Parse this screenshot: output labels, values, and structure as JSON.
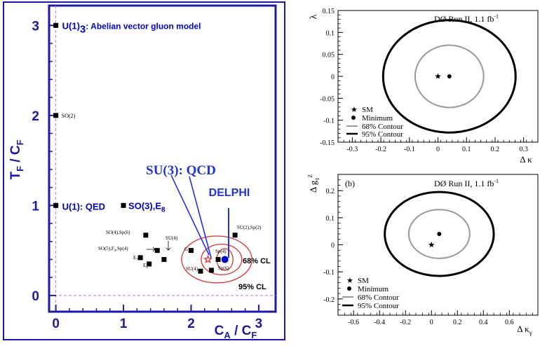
{
  "chart_data": [
    {
      "type": "scatter",
      "xlabel": "C_A / C_F",
      "ylabel": "T_F / C_F",
      "xlim": [
        -0.1,
        3.25
      ],
      "ylim": [
        -0.18,
        3.22
      ],
      "x_ticks": [
        "0",
        "1",
        "2",
        "3"
      ],
      "y_ticks": [
        "0",
        "1",
        "2",
        "3"
      ],
      "colors": {
        "frame": "#1a1aa6",
        "accent": "#0000cc",
        "guide": "#d860d8",
        "contour": "#e03030",
        "point": "#000000"
      },
      "points": [
        {
          "x": 0,
          "y": 3,
          "label": "U(1)",
          "sub": "3",
          "label2": ": Abelian vector gluon model"
        },
        {
          "x": 0,
          "y": 2,
          "label": "SO(2)"
        },
        {
          "x": 0,
          "y": 1,
          "label": "U(1): QED"
        },
        {
          "x": 1,
          "y": 1,
          "label": "SO(3),E",
          "sub": "8"
        },
        {
          "x": 1.33,
          "y": 0.67
        },
        {
          "x": 1.25,
          "y": 0.42
        },
        {
          "x": 1.38,
          "y": 0.35
        },
        {
          "x": 1.5,
          "y": 0.5
        },
        {
          "x": 1.6,
          "y": 0.4
        },
        {
          "x": 2.0,
          "y": 0.5
        },
        {
          "x": 2.4,
          "y": 0.4
        },
        {
          "x": 2.3,
          "y": 0.28
        },
        {
          "x": 2.14,
          "y": 0.27
        },
        {
          "x": 2.65,
          "y": 0.67
        }
      ],
      "small_labels": {
        "so4": "SO(4),Sp(6)",
        "su4": "SU(4)",
        "so5": "SO(5),F",
        "so5_sub": "4",
        "so5_tail": ",Sp(4)",
        "e7": "E",
        "e7_sub": "7",
        "e6": "E",
        "e6_sub": "6",
        "g2": "G",
        "g2_sub": "2",
        "sp4": "Sp(4)",
        "sp6": "Sp(6)",
        "su4b": "SU(4)",
        "su2sp2": "SU(2),Sp(2)"
      },
      "su3": {
        "x": 2.25,
        "y": 0.4,
        "label": "SU(3): QCD"
      },
      "delphi": {
        "x": 2.5,
        "y": 0.4,
        "label": "DELPHI"
      },
      "cl_labels": [
        "68% CL",
        "95% CL"
      ]
    },
    {
      "type": "scatter",
      "title": "DØ Run II, 1.1 fb",
      "title_sup": "-1",
      "xlabel": "Δ κ",
      "ylabel": "λ",
      "xlim": [
        -0.35,
        0.35
      ],
      "ylim": [
        -0.15,
        0.15
      ],
      "x_ticks": [
        "-0.3",
        "-0.2",
        "-0.1",
        "0",
        "0.1",
        "0.2",
        "0.3"
      ],
      "y_ticks": [
        "-0.15",
        "-0.1",
        "-0.05",
        "0",
        "0.05",
        "0.1",
        "0.15"
      ],
      "sm": {
        "x": 0,
        "y": 0
      },
      "minimum": {
        "x": 0.04,
        "y": 0
      },
      "contour68": {
        "cx": 0.04,
        "cy": 0,
        "rx": 0.12,
        "ry": 0.071
      },
      "contour95": {
        "cx": 0.04,
        "cy": 0,
        "rx": 0.232,
        "ry": 0.128
      },
      "legend": [
        "SM",
        "Minimum",
        "68% Contour",
        "95% Contour"
      ]
    },
    {
      "type": "scatter",
      "panel_label": "(b)",
      "title": "DØ Run II, 1.1 fb",
      "title_sup": "-1",
      "xlabel": "Δ κ",
      "xlabel_sub": "γ",
      "ylabel": "Δ g",
      "ylabel_sub": "1",
      "ylabel_sup": "Z",
      "xlim": [
        -0.72,
        0.82
      ],
      "ylim": [
        -0.26,
        0.26
      ],
      "x_ticks": [
        "-0.6",
        "-0.4",
        "-0.2",
        "0",
        "0.2",
        "0.4",
        "0.6"
      ],
      "y_ticks": [
        "-0.2",
        "-0.1",
        "0",
        "0.1",
        "0.2"
      ],
      "sm": {
        "x": 0,
        "y": 0
      },
      "minimum": {
        "x": 0.06,
        "y": 0.04
      },
      "contour68": {
        "cx": 0.06,
        "cy": 0.04,
        "rx": 0.235,
        "ry": 0.09
      },
      "contour95": {
        "cx": 0.06,
        "cy": 0.04,
        "rx": 0.42,
        "ry": 0.155
      },
      "legend": [
        "SM",
        "Minimum",
        "68% Contour",
        "95% Contour"
      ]
    }
  ]
}
